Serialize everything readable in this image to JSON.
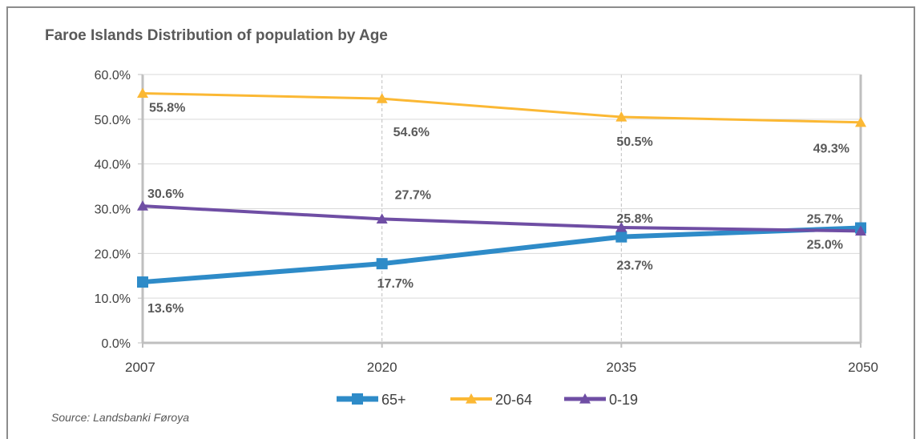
{
  "chart_data": {
    "type": "line",
    "title": "Faroe Islands Distribution of population by Age",
    "x": [
      "2007",
      "2020",
      "2035",
      "2050"
    ],
    "ylim": [
      0,
      60
    ],
    "yticks": [
      "0.0%",
      "10.0%",
      "20.0%",
      "30.0%",
      "40.0%",
      "50.0%",
      "60.0%"
    ],
    "ytick_values": [
      0,
      10,
      20,
      30,
      40,
      50,
      60
    ],
    "grid": true,
    "legend": "bottom",
    "series": [
      {
        "name": "65+",
        "color": "#2e8bc8",
        "marker": "square",
        "values": [
          13.6,
          17.7,
          23.7,
          25.7
        ],
        "labels": [
          "13.6%",
          "17.7%",
          "23.7%",
          "25.7%"
        ]
      },
      {
        "name": "20-64",
        "color": "#fbb834",
        "marker": "triangle",
        "values": [
          55.8,
          54.6,
          50.5,
          49.3
        ],
        "labels": [
          "55.8%",
          "54.6%",
          "50.5%",
          "49.3%"
        ]
      },
      {
        "name": "0-19",
        "color": "#6f4ea4",
        "marker": "triangle",
        "values": [
          30.6,
          27.7,
          25.8,
          25.0
        ],
        "labels": [
          "30.6%",
          "27.7%",
          "25.8%",
          "25.0%"
        ]
      }
    ]
  },
  "source": "Source: Landsbanki Føroya"
}
